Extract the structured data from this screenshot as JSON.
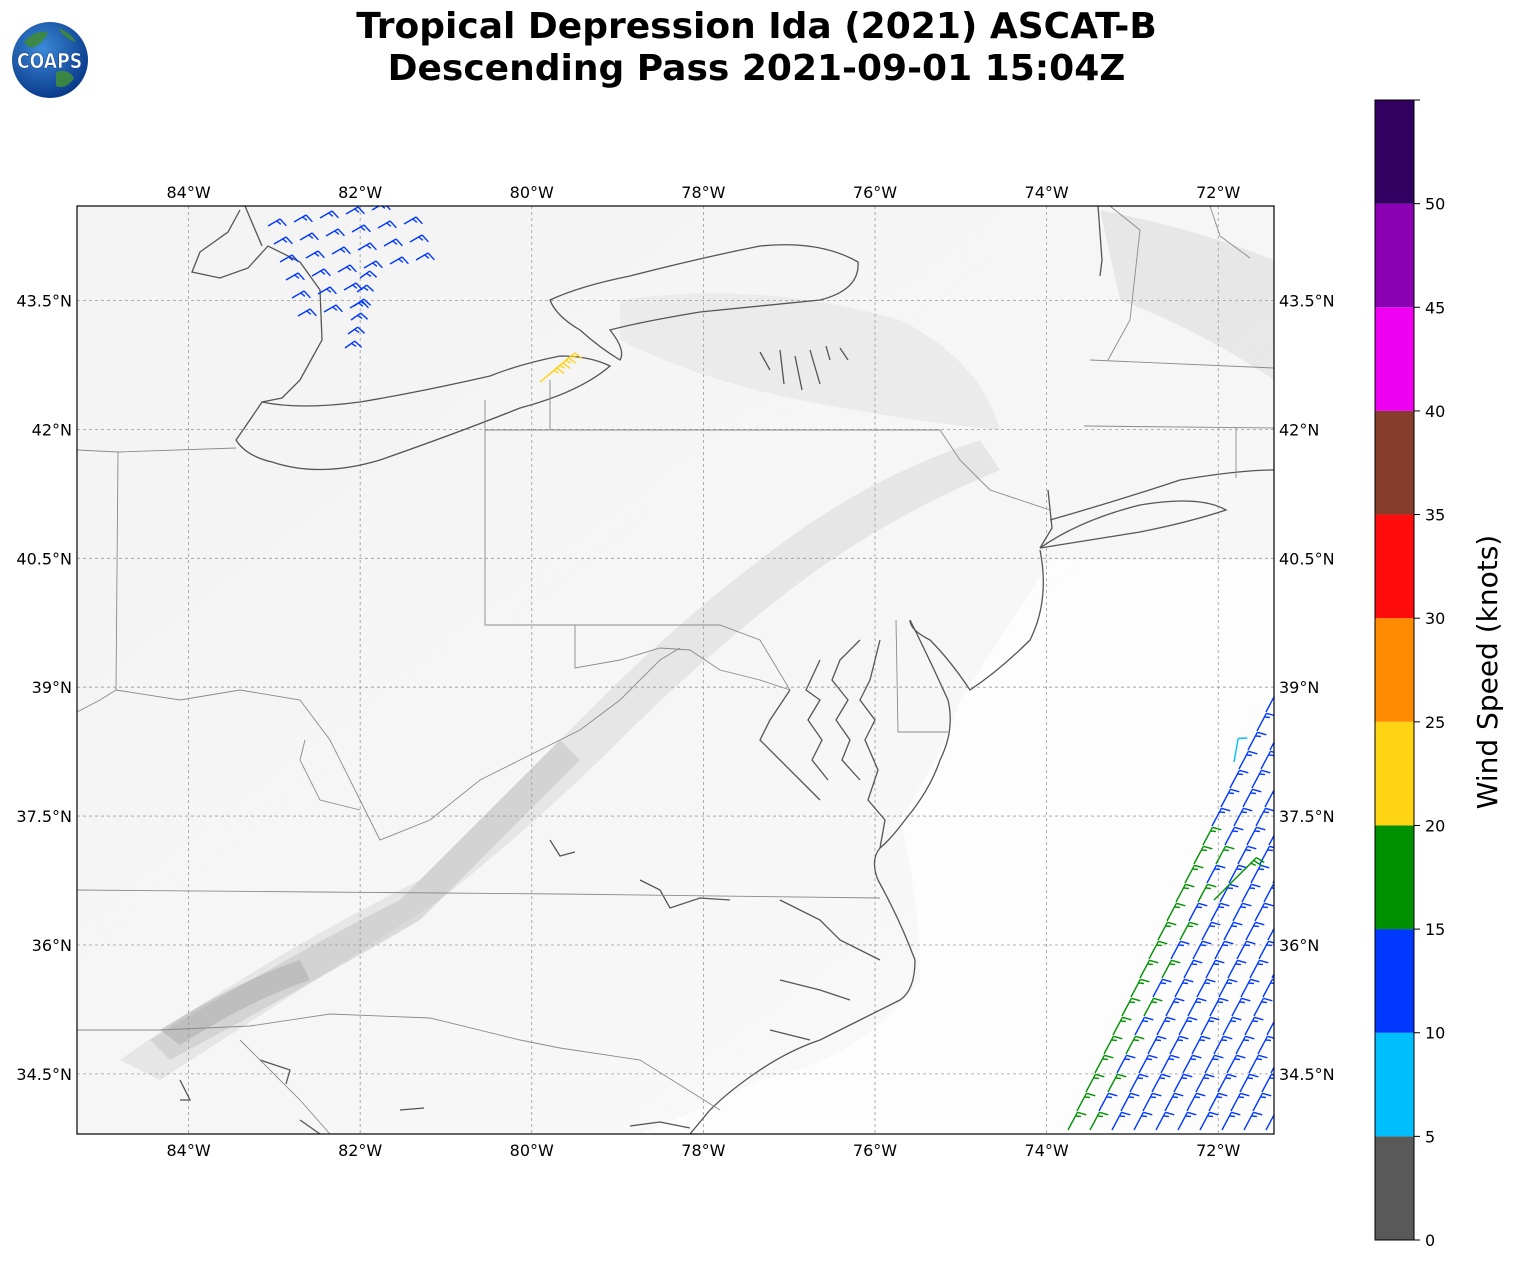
{
  "logo": {
    "text": "COAPS"
  },
  "title": {
    "line1": "Tropical Depression Ida (2021) ASCAT-B",
    "line2": "Descending Pass 2021-09-01 15:04Z"
  },
  "map": {
    "lon_range": [
      -85.3,
      -71.35
    ],
    "lat_range": [
      33.8,
      44.6
    ],
    "lon_ticks": [
      {
        "value": -84,
        "label": "84°W"
      },
      {
        "value": -82,
        "label": "82°W"
      },
      {
        "value": -80,
        "label": "80°W"
      },
      {
        "value": -78,
        "label": "78°W"
      },
      {
        "value": -76,
        "label": "76°W"
      },
      {
        "value": -74,
        "label": "74°W"
      },
      {
        "value": -72,
        "label": "72°W"
      }
    ],
    "lat_ticks": [
      {
        "value": 43.5,
        "label": "43.5°N"
      },
      {
        "value": 42,
        "label": "42°N"
      },
      {
        "value": 40.5,
        "label": "40.5°N"
      },
      {
        "value": 39,
        "label": "39°N"
      },
      {
        "value": 37.5,
        "label": "37.5°N"
      },
      {
        "value": 36,
        "label": "36°N"
      },
      {
        "value": 34.5,
        "label": "34.5°N"
      }
    ],
    "gridlines": true,
    "background": "gray-shaded terrain"
  },
  "colorbar": {
    "label": "Wind Speed (knots)",
    "bins": [
      {
        "min": 0,
        "max": 5,
        "color": "#595959"
      },
      {
        "min": 5,
        "max": 10,
        "color": "#00bfff"
      },
      {
        "min": 10,
        "max": 15,
        "color": "#0038ff"
      },
      {
        "min": 15,
        "max": 20,
        "color": "#009100"
      },
      {
        "min": 20,
        "max": 25,
        "color": "#ffd414"
      },
      {
        "min": 25,
        "max": 30,
        "color": "#ff8c00"
      },
      {
        "min": 30,
        "max": 35,
        "color": "#ff0d0d"
      },
      {
        "min": 35,
        "max": 40,
        "color": "#873d2b"
      },
      {
        "min": 40,
        "max": 45,
        "color": "#f000f0"
      },
      {
        "min": 45,
        "max": 50,
        "color": "#8c00b3"
      },
      {
        "min": 50,
        "max": 55,
        "color": "#310061"
      }
    ],
    "ticks": [
      {
        "value": 0,
        "label": "0"
      },
      {
        "value": 5,
        "label": "5"
      },
      {
        "value": 10,
        "label": "10"
      },
      {
        "value": 15,
        "label": "15"
      },
      {
        "value": 20,
        "label": "20"
      },
      {
        "value": 25,
        "label": "25"
      },
      {
        "value": 30,
        "label": "30"
      },
      {
        "value": 35,
        "label": "35"
      },
      {
        "value": 40,
        "label": "40"
      },
      {
        "value": 45,
        "label": "45"
      },
      {
        "value": 50,
        "label": "50"
      }
    ]
  },
  "wind_barbs": {
    "lake_huron": {
      "speed_knots": 12,
      "color": "#0038ff"
    },
    "lake_erie": {
      "speed_knots": 22,
      "color": "#ffd414"
    },
    "atlantic_swath": {
      "speed_knots": 12,
      "color": "#0038ff",
      "inner_color": "#009100",
      "spot_color": "#00bfff"
    }
  }
}
